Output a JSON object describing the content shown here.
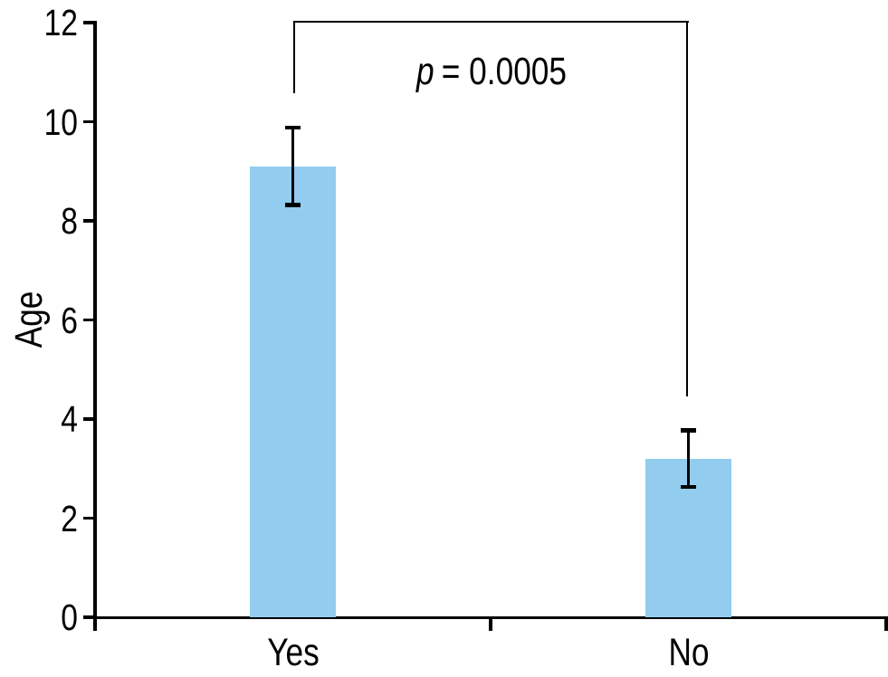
{
  "figure": {
    "background": "#ffffff",
    "ink_color": "#000000"
  },
  "annotation": {
    "p_symbol": "p",
    "p_rest": "= 0.0005",
    "full_text": "p = 0.0005"
  },
  "chart_data": {
    "type": "bar",
    "categories": [
      "Yes",
      "No"
    ],
    "values": [
      9.1,
      3.2
    ],
    "error_bars": [
      0.78,
      0.57
    ],
    "title": "",
    "xlabel": "",
    "ylabel": "Age",
    "ylim": [
      0,
      12
    ],
    "yticks": [
      0,
      2,
      4,
      6,
      8,
      10,
      12
    ],
    "grid": false,
    "legend": "none",
    "bar_color": "#92CDF0",
    "axis_color": "#000000",
    "annotation": {
      "text": "p = 0.0005",
      "connects": [
        "Yes",
        "No"
      ]
    }
  }
}
